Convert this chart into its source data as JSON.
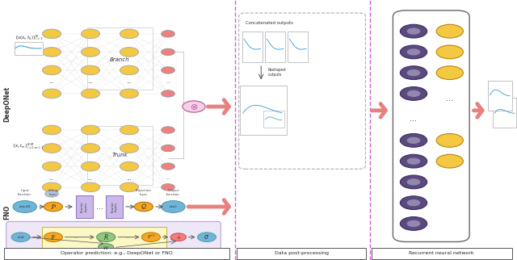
{
  "fig_width": 6.4,
  "fig_height": 3.22,
  "dpi": 100,
  "bg_color": "#ffffff",
  "bottom_labels": [
    "Operator prediction: e.g., DeepONet or FNO",
    "Data post-processing",
    "Recurrent neural network"
  ],
  "yellow_color": "#F5C842",
  "pink_color": "#F08080",
  "purple_color": "#5B4A7B",
  "blue_color": "#6EB5D8",
  "green_color": "#90C97E",
  "orange_color": "#F5A623",
  "lavender_color": "#C9B8E8",
  "light_yellow_bg": "#FDFABE",
  "light_purple_bg": "#E8E0F5"
}
